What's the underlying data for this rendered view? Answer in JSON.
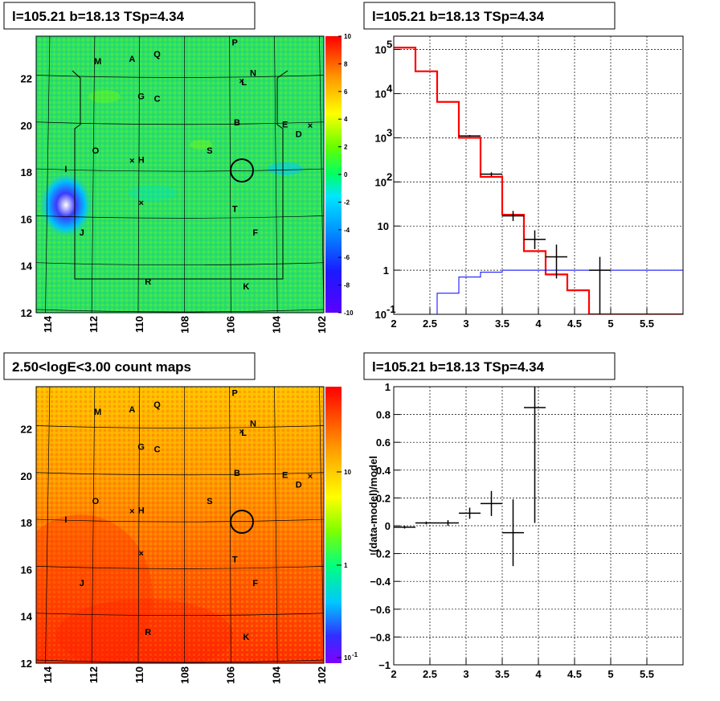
{
  "panels": {
    "tl_title": "l=105.21 b=18.13 TSp=4.34",
    "tr_title": "l=105.21 b=18.13 TSp=4.34",
    "bl_title": "2.50<logE<3.00 count maps",
    "br_title": "l=105.21 b=18.13 TSp=4.34"
  },
  "map_axes": {
    "x_ticks": [
      "114",
      "112",
      "110",
      "108",
      "106",
      "104",
      "102"
    ],
    "y_ticks": [
      "12",
      "14",
      "16",
      "18",
      "20",
      "22"
    ]
  },
  "top_map": {
    "colorbar_ticks": [
      "10",
      "8",
      "6",
      "4",
      "2",
      "0",
      "-2",
      "-4",
      "-6",
      "-8",
      "-10"
    ],
    "colorbar_range": [
      -10,
      10
    ]
  },
  "bottom_map": {
    "colorbar_ticks": [
      "10",
      "1",
      "10-1"
    ],
    "scale": "log"
  },
  "sources": [
    {
      "label": "P",
      "l": 105.8,
      "b": 23.4
    },
    {
      "label": "M",
      "l": 111.8,
      "b": 22.6
    },
    {
      "label": "A",
      "l": 110.3,
      "b": 22.7
    },
    {
      "label": "Q",
      "l": 109.2,
      "b": 22.9
    },
    {
      "label": "N",
      "l": 105.0,
      "b": 22.1
    },
    {
      "label": "L",
      "l": 105.4,
      "b": 21.7
    },
    {
      "label": "G",
      "l": 109.9,
      "b": 21.1
    },
    {
      "label": "C",
      "l": 109.2,
      "b": 21.0
    },
    {
      "label": "B",
      "l": 105.7,
      "b": 20.0
    },
    {
      "label": "E",
      "l": 103.6,
      "b": 19.9
    },
    {
      "label": "D",
      "l": 103.0,
      "b": 19.5
    },
    {
      "label": "O",
      "l": 111.9,
      "b": 18.8
    },
    {
      "label": "S",
      "l": 106.9,
      "b": 18.8
    },
    {
      "label": "H",
      "l": 109.9,
      "b": 18.4
    },
    {
      "label": "I",
      "l": 113.2,
      "b": 18.0
    },
    {
      "label": "T",
      "l": 105.8,
      "b": 16.3
    },
    {
      "label": "J",
      "l": 112.5,
      "b": 15.3
    },
    {
      "label": "F",
      "l": 104.9,
      "b": 15.3
    },
    {
      "label": "R",
      "l": 109.6,
      "b": 13.2
    },
    {
      "label": "K",
      "l": 105.3,
      "b": 13.0
    }
  ],
  "chart_data": [
    {
      "type": "heatmap",
      "title": "l=105.21 b=18.13 TSp=4.34",
      "xlim": [
        114.5,
        101.9
      ],
      "ylim": [
        12,
        23.8
      ],
      "colorbar": [
        -10,
        10
      ]
    },
    {
      "type": "line",
      "title": "l=105.21 b=18.13 TSp=4.34",
      "xlim": [
        2,
        6
      ],
      "ylim": [
        0.1,
        200000
      ],
      "y_scale": "log",
      "x_ticks": [
        "2",
        "2.5",
        "3",
        "3.5",
        "4",
        "4.5",
        "5",
        "5.5"
      ],
      "y_ticks": [
        "10^5",
        "10^4",
        "10^3",
        "10^2",
        "10",
        "1",
        "10^-1"
      ],
      "series": [
        {
          "style": "step",
          "color": "#ff0000",
          "edges": [
            2.0,
            2.3,
            2.6,
            2.9,
            3.2,
            3.5,
            3.8,
            4.1,
            4.4,
            4.7,
            6.0
          ],
          "values": [
            110000,
            32000,
            6500,
            1000,
            130,
            18,
            2.7,
            0.8,
            0.35,
            0.1
          ]
        },
        {
          "style": "step",
          "color": "#0000ff",
          "edges": [
            2.6,
            2.9,
            3.2,
            3.5,
            3.8,
            4.1,
            6.0
          ],
          "values": [
            0.3,
            0.7,
            0.9,
            1.0,
            1.0,
            1.0
          ]
        },
        {
          "style": "errorbar",
          "color": "#000000",
          "points": [
            {
              "x": 3.05,
              "xerr": 0.15,
              "y": 1100,
              "ylo": 1050,
              "yhi": 1150
            },
            {
              "x": 3.35,
              "xerr": 0.15,
              "y": 150,
              "ylo": 135,
              "yhi": 165
            },
            {
              "x": 3.65,
              "xerr": 0.15,
              "y": 17,
              "ylo": 13,
              "yhi": 22
            },
            {
              "x": 3.95,
              "xerr": 0.15,
              "y": 5,
              "ylo": 3,
              "yhi": 8
            },
            {
              "x": 4.25,
              "xerr": 0.15,
              "y": 2,
              "ylo": 0.65,
              "yhi": 3.8
            },
            {
              "x": 4.85,
              "xerr": 0.15,
              "y": 1,
              "ylo": 0.1,
              "yhi": 2
            }
          ]
        }
      ]
    },
    {
      "type": "heatmap",
      "title": "2.50<logE<3.00 count maps",
      "xlim": [
        114.5,
        101.9
      ],
      "ylim": [
        12,
        23.8
      ],
      "colorbar_scale": "log"
    },
    {
      "type": "scatter",
      "title": "l=105.21 b=18.13 TSp=4.34",
      "ylabel": "(data-model)/model",
      "xlim": [
        2,
        6
      ],
      "ylim": [
        -1,
        1
      ],
      "x_ticks": [
        "2",
        "2.5",
        "3",
        "3.5",
        "4",
        "4.5",
        "5",
        "5.5"
      ],
      "y_ticks": [
        "1",
        "0.8",
        "0.6",
        "0.4",
        "0.2",
        "0",
        "−0.2",
        "−0.4",
        "−0.6",
        "−0.8",
        "−1"
      ],
      "points": [
        {
          "x": 2.15,
          "xerr": 0.15,
          "y": -0.01,
          "yerr": 0.01
        },
        {
          "x": 2.45,
          "xerr": 0.15,
          "y": 0.02,
          "yerr": 0.01
        },
        {
          "x": 2.75,
          "xerr": 0.15,
          "y": 0.02,
          "yerr": 0.02
        },
        {
          "x": 3.05,
          "xerr": 0.15,
          "y": 0.09,
          "yerr": 0.04
        },
        {
          "x": 3.35,
          "xerr": 0.15,
          "y": 0.16,
          "yerr": 0.09
        },
        {
          "x": 3.65,
          "xerr": 0.15,
          "y": -0.05,
          "yerr": 0.24
        },
        {
          "x": 3.95,
          "xerr": 0.0,
          "y": 0.85,
          "ylo": 0.02,
          "yhi": 1.0
        }
      ]
    }
  ]
}
